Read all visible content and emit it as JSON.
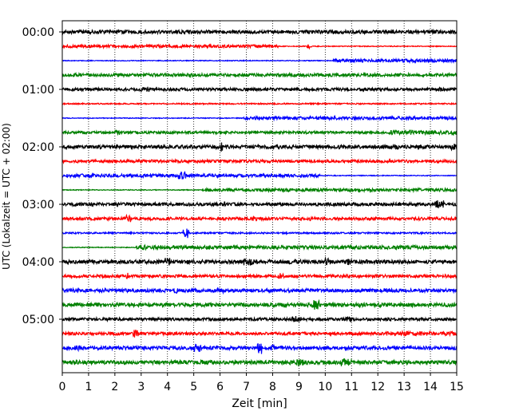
{
  "chart_data": {
    "type": "line",
    "title": "",
    "xlabel": "Zeit  [min]",
    "ylabel": "UTC (Lokalzeit = UTC + 02:00)",
    "xlim": [
      0,
      15
    ],
    "x_ticks": [
      0,
      1,
      2,
      3,
      4,
      5,
      6,
      7,
      8,
      9,
      10,
      11,
      12,
      13,
      14,
      15
    ],
    "y_tick_labels": [
      "00:00",
      "01:00",
      "02:00",
      "03:00",
      "04:00",
      "05:00"
    ],
    "grid": "vertical dotted",
    "series_colors": [
      "#000000",
      "#ff0000",
      "#0000ff",
      "#008000"
    ],
    "traces": [
      {
        "start": "00:00",
        "color": "#000000"
      },
      {
        "start": "00:15",
        "color": "#ff0000"
      },
      {
        "start": "00:30",
        "color": "#0000ff"
      },
      {
        "start": "00:45",
        "color": "#008000"
      },
      {
        "start": "01:00",
        "color": "#000000"
      },
      {
        "start": "01:15",
        "color": "#ff0000"
      },
      {
        "start": "01:30",
        "color": "#0000ff"
      },
      {
        "start": "01:45",
        "color": "#008000"
      },
      {
        "start": "02:00",
        "color": "#000000"
      },
      {
        "start": "02:15",
        "color": "#ff0000"
      },
      {
        "start": "02:30",
        "color": "#0000ff"
      },
      {
        "start": "02:45",
        "color": "#008000"
      },
      {
        "start": "03:00",
        "color": "#000000"
      },
      {
        "start": "03:15",
        "color": "#ff0000"
      },
      {
        "start": "03:30",
        "color": "#0000ff"
      },
      {
        "start": "03:45",
        "color": "#008000"
      },
      {
        "start": "04:00",
        "color": "#000000"
      },
      {
        "start": "04:15",
        "color": "#ff0000"
      },
      {
        "start": "04:30",
        "color": "#0000ff"
      },
      {
        "start": "04:45",
        "color": "#008000"
      },
      {
        "start": "05:00",
        "color": "#000000"
      },
      {
        "start": "05:15",
        "color": "#ff0000"
      },
      {
        "start": "05:30",
        "color": "#0000ff"
      },
      {
        "start": "05:45",
        "color": "#008000"
      }
    ]
  }
}
